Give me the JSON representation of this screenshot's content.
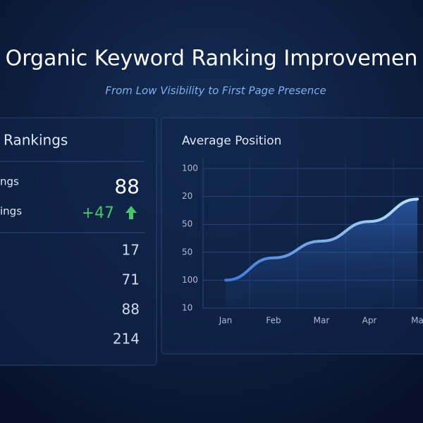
{
  "header": {
    "title": "Organic Keyword Ranking Improvemen",
    "subtitle": "From Low Visibility to First Page Presence"
  },
  "panel": {
    "title": "Rankings",
    "rows": [
      {
        "label": "ngs",
        "value": "88"
      },
      {
        "label": "ings",
        "value": "+47"
      }
    ],
    "list": [
      "17",
      "71",
      "88",
      "214"
    ]
  },
  "chart_data": {
    "type": "line",
    "title": "Average Position",
    "categories": [
      "Jan",
      "Feb",
      "Mar",
      "Apr",
      "Ma"
    ],
    "series": [
      {
        "name": "Average Position",
        "color": "#7ab8ff",
        "values": [
          1.0,
          1.8,
          2.4,
          3.1,
          3.9
        ]
      }
    ],
    "ylim": [
      0,
      5
    ],
    "yticks": [
      {
        "value": 5,
        "label": "100"
      },
      {
        "value": 4,
        "label": "20"
      },
      {
        "value": 3,
        "label": "50"
      },
      {
        "value": 2,
        "label": "50"
      },
      {
        "value": 1,
        "label": "100"
      },
      {
        "value": 0,
        "label": "10"
      }
    ],
    "grid": true
  }
}
